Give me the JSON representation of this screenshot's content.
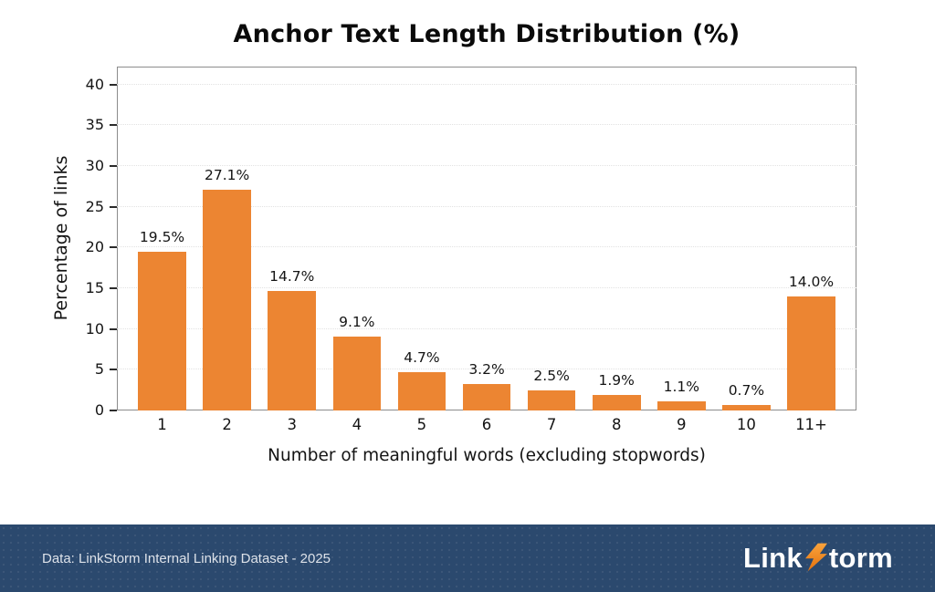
{
  "chart_data": {
    "type": "bar",
    "title": "Anchor Text Length Distribution (%)",
    "xlabel": "Number of meaningful words (excluding stopwords)",
    "ylabel": "Percentage of links",
    "categories": [
      "1",
      "2",
      "3",
      "4",
      "5",
      "6",
      "7",
      "8",
      "9",
      "10",
      "11+"
    ],
    "values": [
      19.5,
      27.1,
      14.7,
      9.1,
      4.7,
      3.2,
      2.5,
      1.9,
      1.1,
      0.7,
      14.0
    ],
    "value_labels": [
      "19.5%",
      "27.1%",
      "14.7%",
      "9.1%",
      "4.7%",
      "3.2%",
      "2.5%",
      "1.9%",
      "1.1%",
      "0.7%",
      "14.0%"
    ],
    "yticks": [
      0,
      5,
      10,
      15,
      20,
      25,
      30,
      35,
      40
    ],
    "ylim": [
      0,
      42.2
    ],
    "grid": true,
    "legend_position": "none",
    "bar_color": "#ec8532"
  },
  "footer": {
    "source_text": "Data: LinkStorm Internal Linking Dataset - 2025",
    "background_color": "#2b496e",
    "logo": {
      "prefix": "Link",
      "suffix": "torm",
      "bolt_color_top": "#f9a33c",
      "bolt_color_bottom": "#e4720e"
    }
  }
}
